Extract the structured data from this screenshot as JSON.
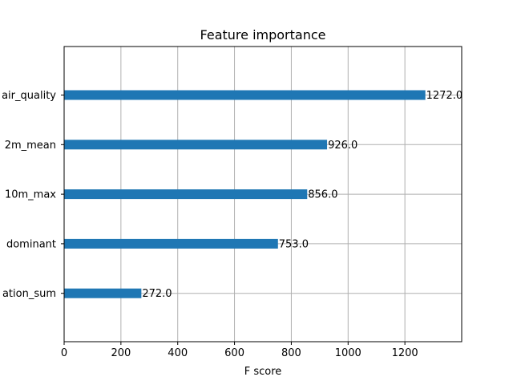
{
  "chart_data": {
    "type": "bar",
    "orientation": "horizontal",
    "title": "Feature importance",
    "xlabel": "F score",
    "ylabel": "",
    "xlim": [
      0,
      1400
    ],
    "xticks": [
      0,
      200,
      400,
      600,
      800,
      1000,
      1200
    ],
    "grid": true,
    "bar_color": "#1f77b4",
    "categories": [
      "air_quality",
      "2m_mean",
      "10m_max",
      "dominant",
      "ation_sum"
    ],
    "values": [
      1272.0,
      926.0,
      856.0,
      753.0,
      272.0
    ],
    "data_labels": [
      "1272.0",
      "926.0",
      "856.0",
      "753.0",
      "272.0"
    ]
  }
}
